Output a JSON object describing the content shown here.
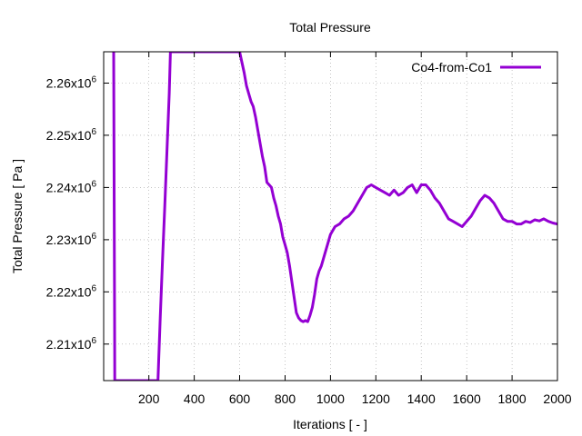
{
  "chart_data": {
    "type": "line",
    "title": "Total Pressure",
    "xlabel": "Iterations [ - ]",
    "ylabel": "Total Pressure [ Pa ]",
    "xlim": [
      1,
      2000
    ],
    "ylim": [
      2203000,
      2266000
    ],
    "x_ticks": [
      200,
      400,
      600,
      800,
      1000,
      1200,
      1400,
      1600,
      1800,
      2000
    ],
    "x_tick_labels": [
      "200",
      "400",
      "600",
      "800",
      "1000",
      "1200",
      "1400",
      "1600",
      "1800",
      "2000"
    ],
    "y_ticks": [
      2210000,
      2220000,
      2230000,
      2240000,
      2250000,
      2260000
    ],
    "y_tick_labels": [
      {
        "mantissa": "2.21x10",
        "exponent": "6"
      },
      {
        "mantissa": "2.22x10",
        "exponent": "6"
      },
      {
        "mantissa": "2.23x10",
        "exponent": "6"
      },
      {
        "mantissa": "2.24x10",
        "exponent": "6"
      },
      {
        "mantissa": "2.25x10",
        "exponent": "6"
      },
      {
        "mantissa": "2.26x10",
        "exponent": "6"
      }
    ],
    "grid": true,
    "legend_position": "top-right",
    "series": [
      {
        "name": "Co4-from-Co1",
        "color": "#9400d3",
        "x": [
          45,
          47,
          49,
          50,
          240,
          250,
          260,
          270,
          280,
          290,
          295,
          600,
          610,
          620,
          630,
          640,
          650,
          660,
          670,
          680,
          690,
          700,
          710,
          720,
          730,
          740,
          750,
          760,
          770,
          780,
          790,
          800,
          810,
          820,
          830,
          840,
          850,
          860,
          870,
          880,
          890,
          900,
          910,
          920,
          930,
          940,
          950,
          960,
          980,
          1000,
          1020,
          1040,
          1060,
          1080,
          1100,
          1120,
          1140,
          1160,
          1180,
          1200,
          1220,
          1240,
          1260,
          1280,
          1300,
          1320,
          1340,
          1360,
          1380,
          1400,
          1420,
          1440,
          1460,
          1480,
          1500,
          1520,
          1540,
          1560,
          1580,
          1600,
          1620,
          1640,
          1660,
          1680,
          1700,
          1720,
          1740,
          1760,
          1780,
          1800,
          1820,
          1840,
          1860,
          1880,
          1900,
          1920,
          1940,
          1960,
          1980,
          2000
        ],
        "y": [
          2266000,
          2240000,
          2215000,
          2203000,
          2203000,
          2215000,
          2226000,
          2236000,
          2247000,
          2258000,
          2266000,
          2266000,
          2264000,
          2262000,
          2259500,
          2258000,
          2256500,
          2255500,
          2253500,
          2251000,
          2248500,
          2246000,
          2244000,
          2241000,
          2240500,
          2240000,
          2238000,
          2236500,
          2234500,
          2233000,
          2230500,
          2229000,
          2227500,
          2225000,
          2222000,
          2219000,
          2216000,
          2215000,
          2214500,
          2214300,
          2214500,
          2214300,
          2215500,
          2217000,
          2219500,
          2222500,
          2224000,
          2225000,
          2228000,
          2231000,
          2232500,
          2233000,
          2234000,
          2234500,
          2235500,
          2237000,
          2238500,
          2240000,
          2240500,
          2240000,
          2239500,
          2239000,
          2238500,
          2239500,
          2238500,
          2239000,
          2240000,
          2240500,
          2239000,
          2240500,
          2240500,
          2239500,
          2238000,
          2237000,
          2235500,
          2234000,
          2233500,
          2233000,
          2232500,
          2233500,
          2234500,
          2236000,
          2237500,
          2238500,
          2238000,
          2237000,
          2235500,
          2234000,
          2233500,
          2233500,
          2233000,
          2233000,
          2233500,
          2233300,
          2233800,
          2233600,
          2234000,
          2233500,
          2233200,
          2233000
        ]
      }
    ]
  }
}
